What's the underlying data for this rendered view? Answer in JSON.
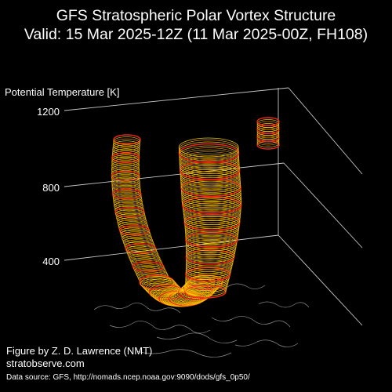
{
  "title": {
    "line1": "GFS Stratospheric Polar Vortex Structure",
    "line2": "Valid: 15 Mar 2025-12Z  (11 Mar 2025-00Z, FH108)"
  },
  "axis": {
    "label": "Potential Temperature [K]",
    "ticks": [
      "1200",
      "800",
      "400"
    ],
    "tick_values": [
      1200,
      800,
      400
    ]
  },
  "credit": {
    "author": "Figure by Z. D. Lawrence (NMT)",
    "site": "stratobserve.com",
    "source": "Data source: GFS, http://nomads.ncep.noaa.gov:9090/dods/gfs_0p50/"
  },
  "colors": {
    "background": "#000000",
    "grid": "#c8c8c8",
    "contour_red": "#ff2a1a",
    "contour_orange": "#ff9a00",
    "contour_yellow": "#ffe000",
    "coastline": "#8a8a8a"
  }
}
